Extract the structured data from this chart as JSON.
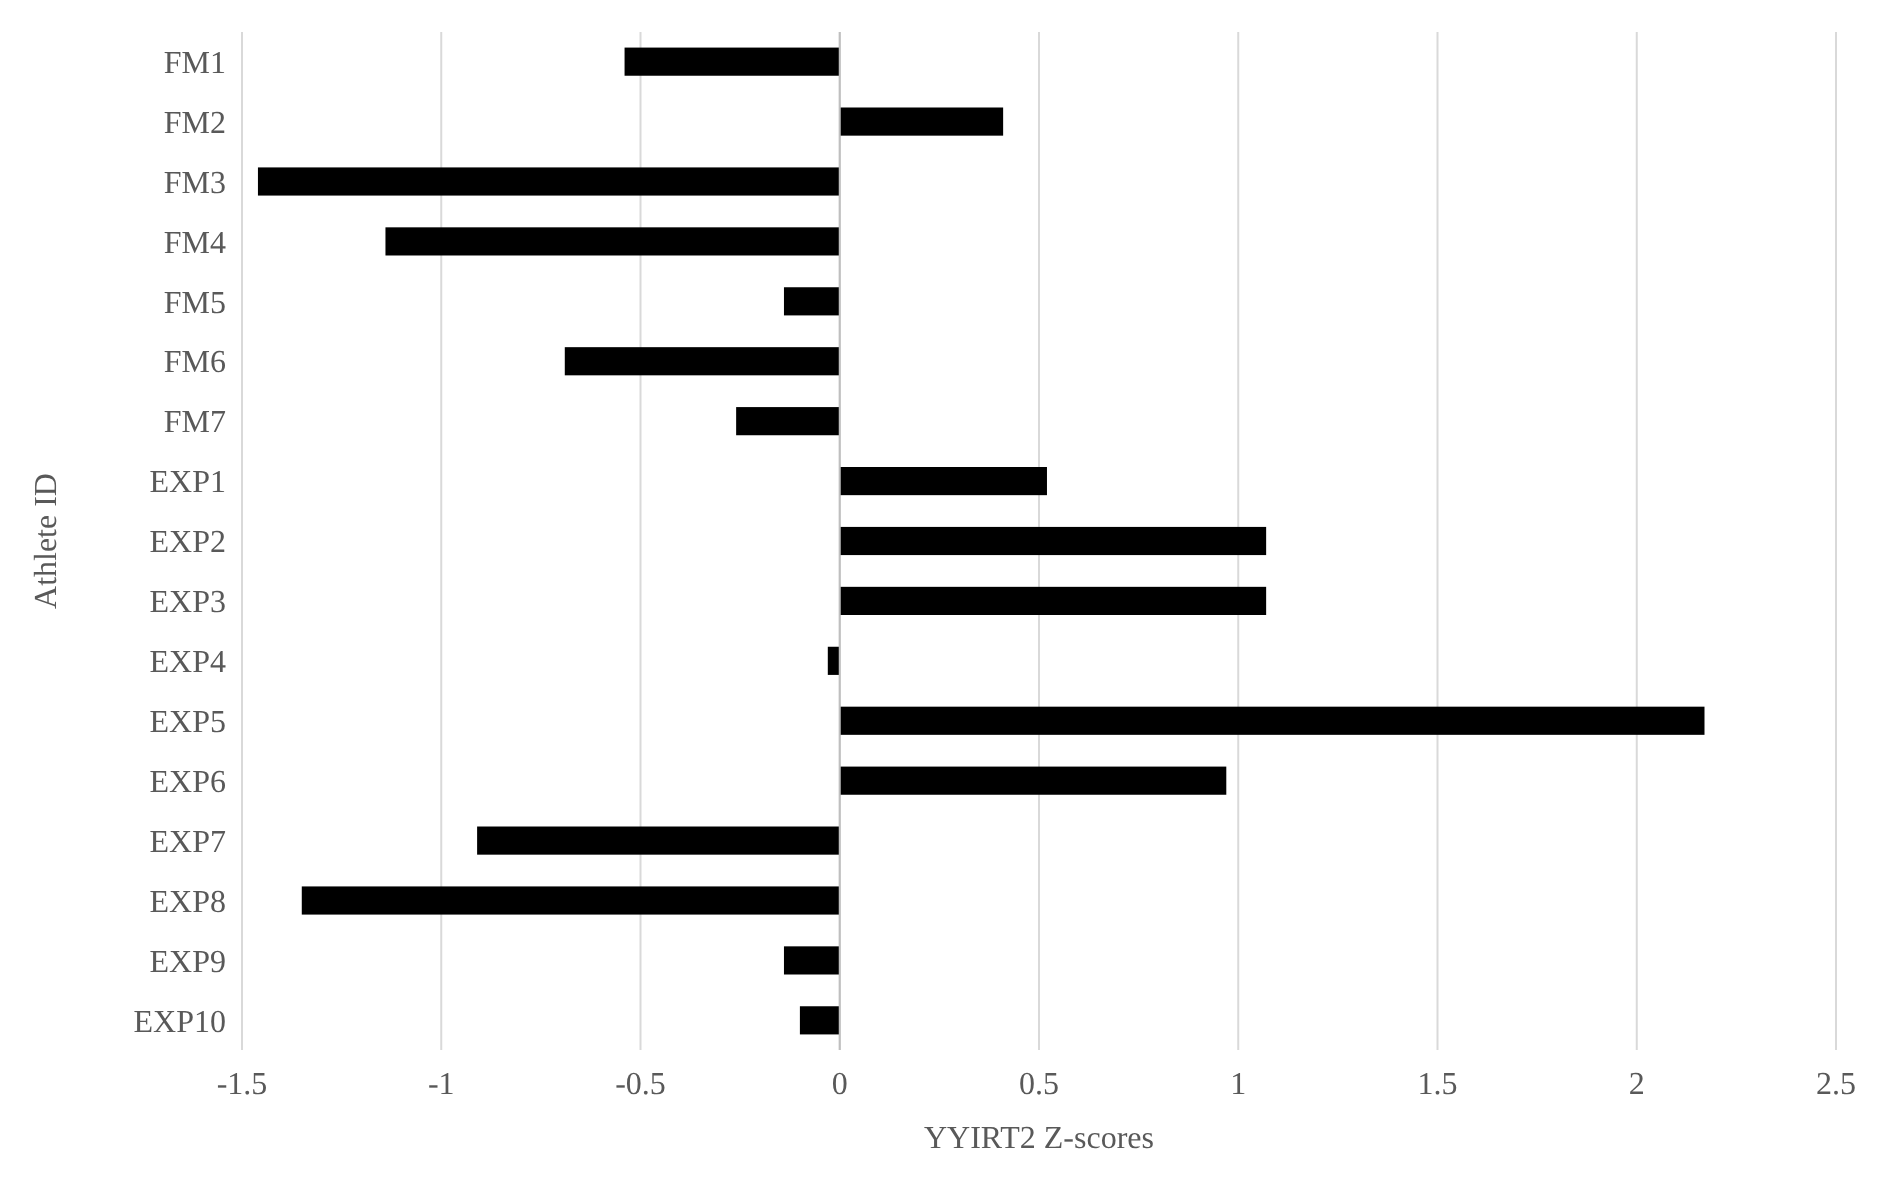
{
  "chart_data": {
    "type": "bar",
    "orientation": "horizontal",
    "xlabel": "YYIRT2 Z-scores",
    "ylabel": "Athlete ID",
    "categories": [
      "FM1",
      "FM2",
      "FM3",
      "FM4",
      "FM5",
      "FM6",
      "FM7",
      "EXP1",
      "EXP2",
      "EXP3",
      "EXP4",
      "EXP5",
      "EXP6",
      "EXP7",
      "EXP8",
      "EXP9",
      "EXP10"
    ],
    "values": [
      -0.54,
      0.41,
      -1.46,
      -1.14,
      -0.14,
      -0.69,
      -0.26,
      0.52,
      1.07,
      1.07,
      -0.03,
      2.17,
      0.97,
      -0.91,
      -1.35,
      -0.14,
      -0.1
    ],
    "color": "#000000",
    "xlim": [
      -1.5,
      2.5
    ],
    "xticks": [
      -1.5,
      -1,
      -0.5,
      0,
      0.5,
      1,
      1.5,
      2,
      2.5
    ],
    "grid": "x"
  }
}
